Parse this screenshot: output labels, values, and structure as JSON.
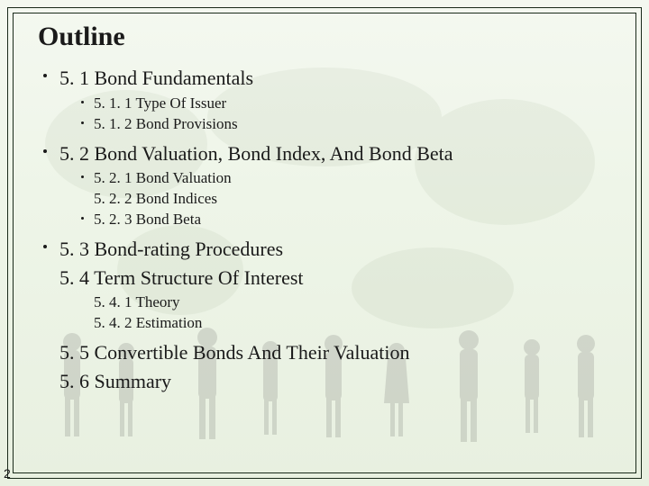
{
  "title": "Outline",
  "page_number": "2",
  "colors": {
    "text": "#1a1a1a",
    "frame": "#1a2a1a",
    "bg_top": "#f4f8f0",
    "bg_bottom": "#e8f0e0",
    "silhouette": "#3a3a3a",
    "silhouette_opacity": 0.15,
    "map_opacity": 0.08
  },
  "typography": {
    "title_fontsize": 30,
    "lvl1_fontsize": 22,
    "lvl2_fontsize": 17,
    "font_family": "Georgia, Times New Roman, serif"
  },
  "outline": [
    {
      "bullet": true,
      "text": "5. 1 Bond Fundamentals",
      "children": [
        {
          "bullet": true,
          "text": "5. 1. 1 Type Of Issuer"
        },
        {
          "bullet": true,
          "text": "5. 1. 2 Bond Provisions"
        }
      ]
    },
    {
      "bullet": true,
      "text": "5. 2 Bond Valuation, Bond Index, And Bond Beta",
      "children": [
        {
          "bullet": true,
          "text": "5. 2. 1 Bond Valuation"
        },
        {
          "bullet": false,
          "text": "5. 2. 2 Bond Indices"
        },
        {
          "bullet": true,
          "text": "5. 2. 3 Bond Beta"
        }
      ]
    },
    {
      "bullet": true,
      "text": "5. 3 Bond-rating Procedures",
      "children": []
    },
    {
      "bullet": false,
      "text": "5. 4 Term Structure Of Interest",
      "children": [
        {
          "bullet": false,
          "text": "5. 4. 1 Theory"
        },
        {
          "bullet": false,
          "text": "5. 4. 2 Estimation"
        }
      ]
    },
    {
      "bullet": false,
      "text": "5. 5 Convertible Bonds And Their Valuation",
      "children": []
    },
    {
      "bullet": false,
      "text": "5. 6 Summary",
      "children": []
    }
  ]
}
